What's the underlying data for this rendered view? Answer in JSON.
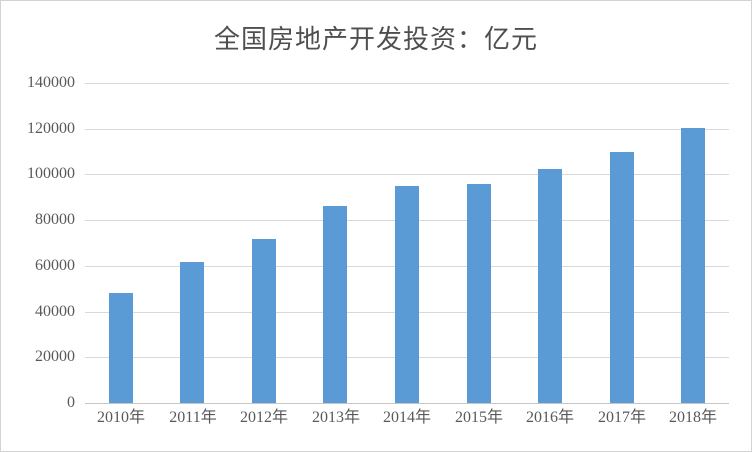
{
  "chart_data": {
    "type": "bar",
    "title": "全国房地产开发投资：亿元",
    "categories": [
      "2010年",
      "2011年",
      "2012年",
      "2013年",
      "2014年",
      "2015年",
      "2016年",
      "2017年",
      "2018年"
    ],
    "values": [
      48267,
      61740,
      71804,
      86013,
      95036,
      95979,
      102581,
      109799,
      120264
    ],
    "series_name": "全国房地产开发投资",
    "unit": "亿元",
    "xlabel": "",
    "ylabel": "",
    "ylim": [
      0,
      140000
    ],
    "y_ticks": [
      0,
      20000,
      40000,
      60000,
      80000,
      100000,
      120000,
      140000
    ],
    "grid": true,
    "legend_position": "none"
  },
  "style": {
    "bar_color": "#5b9bd5",
    "grid_color": "#d9d9d9",
    "axis_line_color": "#c6c6c6",
    "tick_label_color": "#595959",
    "title_color": "#4f4f4f",
    "frame_border_color": "#d3d3d3",
    "background": "#ffffff"
  }
}
